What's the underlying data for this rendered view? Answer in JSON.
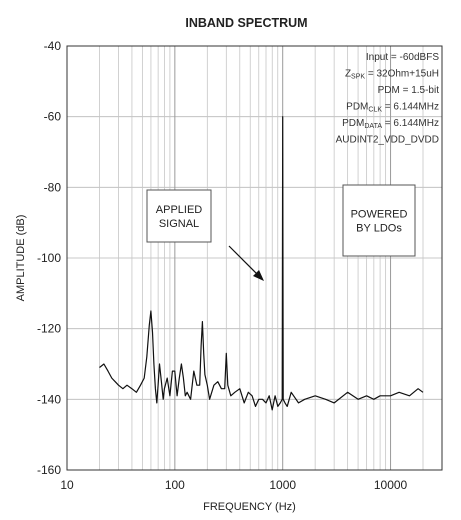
{
  "chart_data": {
    "type": "line",
    "title": "INBAND SPECTRUM",
    "xlabel": "FREQUENCY (Hz)",
    "ylabel": "AMPLITUDE (dB)",
    "x_scale": "log",
    "xlim": [
      10,
      30000
    ],
    "ylim": [
      -160,
      -40
    ],
    "x_ticks": [
      10,
      100,
      1000,
      10000
    ],
    "x_tick_labels": [
      "10",
      "100",
      "1000",
      "10000"
    ],
    "y_ticks": [
      -160,
      -140,
      -120,
      -100,
      -80,
      -60,
      -40
    ],
    "y_tick_labels": [
      "-160",
      "-140",
      "-120",
      "-100",
      "-80",
      "-60",
      "-40"
    ],
    "grid": true,
    "info_lines": [
      "Input = -60dBFS",
      "ZSPK = 32Ohm+15uH",
      "PDM = 1.5-bit",
      "PDMCLK = 6.144MHz",
      "PDMDATA = 6.144MHz",
      "AUDINT2_VDD_DVDD"
    ],
    "annotations": [
      {
        "text_lines": [
          "APPLIED",
          "SIGNAL"
        ]
      },
      {
        "text_lines": [
          "POWERED",
          "BY LDOs"
        ]
      }
    ],
    "series": [
      {
        "color": "#111111",
        "x": [
          20,
          22,
          24,
          26,
          28,
          30,
          33,
          36,
          40,
          44,
          48,
          52,
          55,
          58,
          60,
          62,
          64,
          66,
          68,
          70,
          72,
          75,
          78,
          80,
          85,
          90,
          95,
          100,
          105,
          110,
          115,
          120,
          125,
          130,
          140,
          150,
          160,
          170,
          175,
          180,
          185,
          190,
          200,
          210,
          230,
          250,
          270,
          290,
          300,
          310,
          330,
          360,
          400,
          440,
          480,
          520,
          560,
          600,
          650,
          700,
          750,
          800,
          850,
          900,
          950,
          990,
          1000,
          1010,
          1050,
          1100,
          1200,
          1400,
          1600,
          2000,
          2500,
          3000,
          4000,
          5000,
          6000,
          7000,
          8000,
          10000,
          12000,
          15000,
          18000,
          20000
        ],
        "y": [
          -131,
          -130,
          -132,
          -134,
          -135,
          -136,
          -137,
          -136,
          -137,
          -138,
          -136,
          -134,
          -128,
          -119,
          -115,
          -121,
          -130,
          -137,
          -141,
          -136,
          -130,
          -135,
          -140,
          -137,
          -134,
          -139,
          -132,
          -132,
          -139,
          -134,
          -130,
          -134,
          -139,
          -138,
          -140,
          -132,
          -136,
          -136,
          -125,
          -118,
          -127,
          -133,
          -136,
          -140,
          -136,
          -135,
          -137,
          -137,
          -127,
          -136,
          -139,
          -138,
          -137,
          -141,
          -138,
          -139,
          -142,
          -140,
          -140,
          -141,
          -139,
          -143,
          -139,
          -142,
          -141,
          -140,
          -60,
          -140,
          -141,
          -142,
          -138,
          -141,
          -140,
          -139,
          -140,
          -141,
          -138,
          -140,
          -139,
          -140,
          -139,
          -139,
          -138,
          -139,
          -137,
          -138
        ]
      }
    ]
  }
}
